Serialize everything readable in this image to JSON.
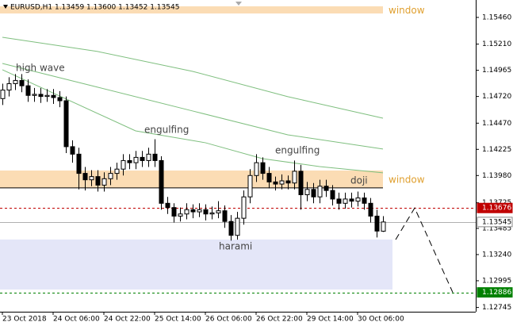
{
  "chart_data": {
    "type": "candlestick",
    "title": "EURUSD,H1  1.13459 1.13600 1.13452 1.13545",
    "categories": [
      "23 Oct 2018",
      null,
      null,
      null,
      null,
      null,
      null,
      null,
      "24 Oct 06:00",
      null,
      null,
      null,
      null,
      null,
      null,
      null,
      "24 Oct 22:00",
      null,
      null,
      null,
      null,
      null,
      null,
      null,
      "25 Oct 14:00",
      null,
      null,
      null,
      null,
      null,
      null,
      null,
      "26 Oct 06:00",
      null,
      null,
      null,
      null,
      null,
      null,
      null,
      "26 Oct 22:00",
      null,
      null,
      null,
      null,
      null,
      null,
      null,
      "29 Oct 14:00",
      null,
      null,
      null,
      null,
      null,
      null,
      null,
      "30 Oct 06:00",
      null,
      null,
      null,
      null
    ],
    "open": [
      1.147,
      1.1478,
      1.1484,
      1.1487,
      1.1482,
      1.1473,
      1.1474,
      1.1472,
      1.1473,
      1.1471,
      1.1468,
      1.1425,
      1.1418,
      1.14,
      1.1394,
      1.1397,
      1.1389,
      1.1395,
      1.14,
      1.1404,
      1.1412,
      1.141,
      1.1415,
      1.1412,
      1.1418,
      1.1412,
      1.1372,
      1.1368,
      1.136,
      1.1362,
      1.1366,
      1.1364,
      1.1366,
      1.1362,
      1.1363,
      1.1365,
      1.1355,
      1.1342,
      1.1358,
      1.1378,
      1.1398,
      1.141,
      1.14,
      1.1392,
      1.139,
      1.1393,
      1.1391,
      1.1402,
      1.138,
      1.1385,
      1.1378,
      1.1388,
      1.1384,
      1.1376,
      1.1372,
      1.1376,
      1.1374,
      1.1377,
      1.1372,
      1.136,
      1.13459
    ],
    "high": [
      1.1484,
      1.149,
      1.1493,
      1.1493,
      1.1488,
      1.148,
      1.148,
      1.1479,
      1.1479,
      1.1477,
      1.1472,
      1.1431,
      1.1424,
      1.1406,
      1.1403,
      1.1403,
      1.1401,
      1.1406,
      1.141,
      1.1418,
      1.1418,
      1.1421,
      1.1421,
      1.1424,
      1.1432,
      1.1416,
      1.1378,
      1.1372,
      1.1368,
      1.1372,
      1.1371,
      1.1372,
      1.1371,
      1.1369,
      1.1374,
      1.137,
      1.1361,
      1.1364,
      1.1384,
      1.1404,
      1.1418,
      1.1415,
      1.1406,
      1.1397,
      1.1399,
      1.1398,
      1.1412,
      1.1408,
      1.1392,
      1.1391,
      1.1394,
      1.1394,
      1.1389,
      1.1382,
      1.1382,
      1.1382,
      1.1383,
      1.1382,
      1.1377,
      1.1366,
      1.136
    ],
    "low": [
      1.1464,
      1.1472,
      1.1478,
      1.1476,
      1.1467,
      1.1467,
      1.1466,
      1.1467,
      1.1465,
      1.1462,
      1.1419,
      1.141,
      1.1385,
      1.1384,
      1.1388,
      1.1383,
      1.1383,
      1.1389,
      1.1394,
      1.1398,
      1.1404,
      1.1404,
      1.1406,
      1.1406,
      1.1406,
      1.1366,
      1.1362,
      1.1354,
      1.1355,
      1.1357,
      1.1358,
      1.1359,
      1.1356,
      1.1357,
      1.1358,
      1.1349,
      1.1337,
      1.1338,
      1.1352,
      1.1372,
      1.1392,
      1.1394,
      1.1386,
      1.1384,
      1.1385,
      1.1385,
      1.1385,
      1.1366,
      1.1374,
      1.1372,
      1.1372,
      1.1378,
      1.137,
      1.1366,
      1.1367,
      1.1368,
      1.1369,
      1.1366,
      1.1354,
      1.134,
      1.13452
    ],
    "close": [
      1.1478,
      1.1484,
      1.1487,
      1.1482,
      1.1473,
      1.1474,
      1.1472,
      1.1473,
      1.1471,
      1.1468,
      1.1425,
      1.1418,
      1.14,
      1.1394,
      1.1397,
      1.1389,
      1.1395,
      1.14,
      1.1404,
      1.1412,
      1.141,
      1.1415,
      1.1412,
      1.1418,
      1.1412,
      1.1372,
      1.1368,
      1.136,
      1.1362,
      1.1366,
      1.1364,
      1.1366,
      1.1362,
      1.1363,
      1.1365,
      1.1355,
      1.1342,
      1.1358,
      1.1378,
      1.1398,
      1.141,
      1.14,
      1.1392,
      1.139,
      1.1393,
      1.1391,
      1.1402,
      1.138,
      1.1385,
      1.1378,
      1.1388,
      1.1384,
      1.1376,
      1.1372,
      1.1376,
      1.1374,
      1.1377,
      1.1372,
      1.136,
      1.1346,
      1.13545
    ],
    "series": [
      {
        "color": "#7fbf7f",
        "x": [
          0,
          15,
          30,
          45,
          60
        ],
        "values": [
          1.15274,
          1.15141,
          1.14955,
          1.14718,
          1.14517
        ]
      },
      {
        "color": "#7fbf7f",
        "x": [
          0,
          15,
          30,
          45,
          60
        ],
        "values": [
          1.15029,
          1.14807,
          1.14584,
          1.14361,
          1.14228
        ]
      },
      {
        "color": "#7fbf7f",
        "x": [
          0,
          21,
          32,
          41,
          50,
          60
        ],
        "values": [
          1.1497,
          1.14398,
          1.14287,
          1.14138,
          1.14064,
          1.14005
        ]
      }
    ],
    "zones": [
      {
        "label": "window",
        "color": "#fbdcb4",
        "x": [
          0,
          60
        ],
        "y": [
          1.15497,
          1.15564
        ]
      },
      {
        "label": "window",
        "color": "#fbdcb4",
        "x": [
          0,
          60
        ],
        "y": [
          1.13864,
          1.14027
        ]
      },
      {
        "color": "#e4e6f8",
        "x": [
          0,
          61.5
        ],
        "y": [
          1.12913,
          1.13381
        ]
      }
    ],
    "levels": [
      {
        "value": 1.13676,
        "color": "#c00000",
        "dashed": true
      },
      {
        "value": 1.13545,
        "color": "#b0b0b0",
        "dashed": false
      },
      {
        "value": 1.12886,
        "color": "#008000",
        "dashed": true
      }
    ],
    "projection": {
      "x": [
        62,
        65,
        71
      ],
      "y": [
        1.1338,
        1.13676,
        1.12886
      ]
    },
    "annotations": [
      "high wave",
      "engulfing",
      "engulfing",
      "doji",
      "harami"
    ],
    "ylim": [
      1.12705,
      1.15623
    ],
    "yticks": [
      {
        "value": 1.1546,
        "label": "1.15460"
      },
      {
        "value": 1.1521,
        "label": "1.15210"
      },
      1.14965,
      {
        "value": 1.1472,
        "label": "1.14720"
      },
      {
        "value": 1.1447,
        "label": "1.14470"
      },
      1.14225,
      {
        "value": 1.1398,
        "label": "1.13980"
      },
      1.13725,
      1.13485,
      {
        "value": 1.1324,
        "label": "1.13240"
      },
      1.12995,
      1.12745
    ]
  }
}
